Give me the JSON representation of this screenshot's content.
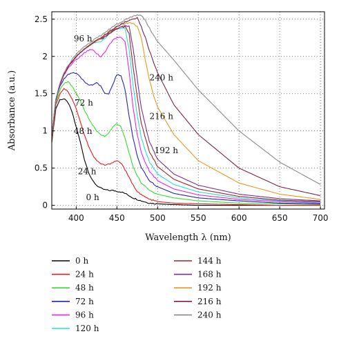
{
  "chart_data": {
    "type": "line",
    "xlabel": "Wavelength λ (nm)",
    "ylabel": "Absorbance (a.u.)",
    "xlim": [
      370,
      705
    ],
    "ylim": [
      -0.05,
      2.6
    ],
    "x_ticks": [
      400,
      450,
      500,
      550,
      600,
      650,
      700
    ],
    "y_ticks": [
      0,
      0.5,
      1,
      1.5,
      2,
      2.5
    ],
    "y_tick_labels": [
      "0",
      "0.5",
      "1",
      "1.5",
      "2",
      "2.5"
    ],
    "grid": true,
    "grid_style": "dotted",
    "legend_position": "bottom (two columns)",
    "series": [
      {
        "name": "0 h",
        "color": "#000000",
        "x": [
          370,
          375,
          380,
          385,
          390,
          395,
          400,
          405,
          410,
          415,
          420,
          425,
          430,
          435,
          440,
          445,
          450,
          455,
          460,
          465,
          470,
          480,
          490,
          500,
          520,
          550,
          600,
          650,
          700
        ],
        "y": [
          0.85,
          1.3,
          1.42,
          1.43,
          1.38,
          1.25,
          1.05,
          0.85,
          0.62,
          0.45,
          0.33,
          0.27,
          0.23,
          0.21,
          0.2,
          0.2,
          0.19,
          0.18,
          0.16,
          0.13,
          0.1,
          0.06,
          0.03,
          0.02,
          0.01,
          0.0,
          0.0,
          0.0,
          0.0
        ]
      },
      {
        "name": "24 h",
        "color": "#e41a1c",
        "x": [
          370,
          375,
          380,
          385,
          390,
          395,
          400,
          405,
          410,
          415,
          420,
          425,
          430,
          435,
          440,
          445,
          450,
          455,
          460,
          465,
          470,
          475,
          480,
          490,
          500,
          520,
          550,
          600,
          650,
          700
        ],
        "y": [
          0.85,
          1.35,
          1.5,
          1.57,
          1.53,
          1.43,
          1.3,
          1.12,
          0.95,
          0.8,
          0.68,
          0.6,
          0.56,
          0.54,
          0.55,
          0.58,
          0.6,
          0.57,
          0.48,
          0.37,
          0.27,
          0.19,
          0.14,
          0.08,
          0.05,
          0.03,
          0.02,
          0.01,
          0.0,
          0.0
        ]
      },
      {
        "name": "48 h",
        "color": "#33dd33",
        "x": [
          370,
          375,
          380,
          385,
          390,
          395,
          400,
          405,
          410,
          415,
          420,
          425,
          430,
          435,
          440,
          445,
          450,
          455,
          460,
          465,
          470,
          475,
          480,
          490,
          500,
          520,
          550,
          600,
          650,
          700
        ],
        "y": [
          0.9,
          1.38,
          1.55,
          1.64,
          1.66,
          1.6,
          1.5,
          1.4,
          1.28,
          1.18,
          1.08,
          1.0,
          0.95,
          0.93,
          0.97,
          1.05,
          1.1,
          1.05,
          0.9,
          0.7,
          0.52,
          0.4,
          0.3,
          0.2,
          0.15,
          0.1,
          0.06,
          0.03,
          0.02,
          0.01
        ]
      },
      {
        "name": "72 h",
        "color": "#2222bb",
        "x": [
          370,
          375,
          380,
          385,
          390,
          395,
          400,
          405,
          410,
          415,
          420,
          425,
          430,
          435,
          440,
          445,
          450,
          455,
          460,
          465,
          470,
          475,
          480,
          490,
          500,
          520,
          550,
          600,
          650,
          700
        ],
        "y": [
          0.92,
          1.4,
          1.6,
          1.7,
          1.76,
          1.78,
          1.77,
          1.72,
          1.66,
          1.62,
          1.62,
          1.65,
          1.6,
          1.5,
          1.5,
          1.62,
          1.76,
          1.74,
          1.55,
          1.2,
          0.9,
          0.66,
          0.5,
          0.33,
          0.25,
          0.16,
          0.1,
          0.06,
          0.03,
          0.02
        ]
      },
      {
        "name": "96 h",
        "color": "#ee22ee",
        "x": [
          370,
          375,
          380,
          385,
          390,
          395,
          400,
          405,
          410,
          415,
          420,
          425,
          430,
          435,
          440,
          445,
          450,
          455,
          460,
          465,
          470,
          475,
          480,
          490,
          500,
          520,
          550,
          600,
          650,
          700
        ],
        "y": [
          0.95,
          1.42,
          1.62,
          1.75,
          1.84,
          1.9,
          1.96,
          2.0,
          2.05,
          2.08,
          2.1,
          2.04,
          2.0,
          2.05,
          2.15,
          2.22,
          2.25,
          2.25,
          2.2,
          1.8,
          1.3,
          0.95,
          0.7,
          0.45,
          0.33,
          0.22,
          0.14,
          0.08,
          0.05,
          0.03
        ]
      },
      {
        "name": "120 h",
        "color": "#22dddd",
        "x": [
          370,
          375,
          380,
          385,
          390,
          395,
          400,
          405,
          410,
          415,
          420,
          425,
          430,
          435,
          440,
          445,
          450,
          455,
          460,
          465,
          470,
          475,
          480,
          490,
          500,
          520,
          550,
          600,
          650,
          700
        ],
        "y": [
          0.95,
          1.42,
          1.63,
          1.76,
          1.86,
          1.93,
          2.0,
          2.05,
          2.1,
          2.14,
          2.17,
          2.19,
          2.2,
          2.24,
          2.3,
          2.34,
          2.37,
          2.38,
          2.37,
          2.1,
          1.6,
          1.2,
          0.9,
          0.58,
          0.42,
          0.28,
          0.18,
          0.1,
          0.06,
          0.04
        ]
      },
      {
        "name": "144 h",
        "color": "#9b2226",
        "x": [
          370,
          375,
          380,
          385,
          390,
          395,
          400,
          405,
          410,
          415,
          420,
          425,
          430,
          435,
          440,
          445,
          450,
          455,
          460,
          465,
          470,
          475,
          480,
          490,
          500,
          520,
          550,
          600,
          650,
          700
        ],
        "y": [
          0.95,
          1.42,
          1.63,
          1.76,
          1.86,
          1.93,
          2.0,
          2.05,
          2.1,
          2.14,
          2.18,
          2.21,
          2.23,
          2.26,
          2.3,
          2.34,
          2.37,
          2.39,
          2.4,
          2.3,
          1.85,
          1.45,
          1.1,
          0.72,
          0.52,
          0.35,
          0.22,
          0.12,
          0.07,
          0.05
        ]
      },
      {
        "name": "168 h",
        "color": "#7b2d8b",
        "x": [
          370,
          375,
          380,
          385,
          390,
          395,
          400,
          405,
          410,
          415,
          420,
          425,
          430,
          435,
          440,
          445,
          450,
          455,
          460,
          465,
          470,
          475,
          480,
          490,
          500,
          520,
          550,
          600,
          650,
          700
        ],
        "y": [
          0.95,
          1.42,
          1.63,
          1.76,
          1.86,
          1.93,
          2.0,
          2.05,
          2.1,
          2.14,
          2.18,
          2.21,
          2.24,
          2.27,
          2.31,
          2.35,
          2.38,
          2.4,
          2.42,
          2.4,
          2.1,
          1.7,
          1.3,
          0.85,
          0.62,
          0.42,
          0.27,
          0.15,
          0.09,
          0.06
        ]
      },
      {
        "name": "192 h",
        "color": "#e8961e",
        "x": [
          370,
          375,
          380,
          385,
          390,
          395,
          400,
          405,
          410,
          415,
          420,
          425,
          430,
          435,
          440,
          445,
          450,
          455,
          460,
          465,
          470,
          475,
          480,
          485,
          490,
          495,
          500,
          520,
          550,
          600,
          650,
          700
        ],
        "y": [
          0.95,
          1.42,
          1.63,
          1.76,
          1.86,
          1.93,
          2.0,
          2.05,
          2.1,
          2.14,
          2.18,
          2.21,
          2.24,
          2.28,
          2.32,
          2.36,
          2.4,
          2.42,
          2.44,
          2.45,
          2.44,
          2.4,
          2.25,
          1.95,
          1.68,
          1.48,
          1.32,
          0.95,
          0.6,
          0.3,
          0.15,
          0.08
        ]
      },
      {
        "name": "216 h",
        "color": "#7a1f4d",
        "x": [
          370,
          375,
          380,
          385,
          390,
          395,
          400,
          405,
          410,
          415,
          420,
          425,
          430,
          435,
          440,
          445,
          450,
          455,
          460,
          465,
          470,
          475,
          480,
          485,
          490,
          495,
          500,
          520,
          550,
          600,
          650,
          700
        ],
        "y": [
          0.95,
          1.42,
          1.63,
          1.76,
          1.86,
          1.93,
          2.0,
          2.05,
          2.1,
          2.14,
          2.18,
          2.22,
          2.25,
          2.29,
          2.33,
          2.37,
          2.4,
          2.43,
          2.46,
          2.48,
          2.5,
          2.52,
          2.4,
          2.25,
          2.08,
          1.92,
          1.78,
          1.35,
          0.95,
          0.5,
          0.25,
          0.13
        ]
      },
      {
        "name": "240 h",
        "color": "#888888",
        "x": [
          370,
          375,
          380,
          385,
          390,
          395,
          400,
          405,
          410,
          415,
          420,
          425,
          430,
          435,
          440,
          445,
          450,
          455,
          460,
          465,
          470,
          475,
          480,
          485,
          490,
          495,
          500,
          520,
          550,
          600,
          650,
          700
        ],
        "y": [
          0.95,
          1.42,
          1.64,
          1.78,
          1.88,
          1.96,
          2.03,
          2.08,
          2.13,
          2.17,
          2.21,
          2.25,
          2.28,
          2.32,
          2.36,
          2.4,
          2.43,
          2.46,
          2.49,
          2.52,
          2.54,
          2.56,
          2.55,
          2.48,
          2.38,
          2.28,
          2.2,
          1.95,
          1.55,
          1.0,
          0.58,
          0.28
        ]
      }
    ],
    "annotations": [
      {
        "text": "0 h",
        "x": 412,
        "y": 0.07
      },
      {
        "text": "24 h",
        "x": 402,
        "y": 0.42
      },
      {
        "text": "48 h",
        "x": 397,
        "y": 0.96
      },
      {
        "text": "72 h",
        "x": 398,
        "y": 1.34
      },
      {
        "text": "96 h",
        "x": 397,
        "y": 2.2
      },
      {
        "text": "240 h",
        "x": 490,
        "y": 1.68
      },
      {
        "text": "216 h",
        "x": 490,
        "y": 1.16
      },
      {
        "text": "192 h",
        "x": 496,
        "y": 0.7
      }
    ]
  }
}
